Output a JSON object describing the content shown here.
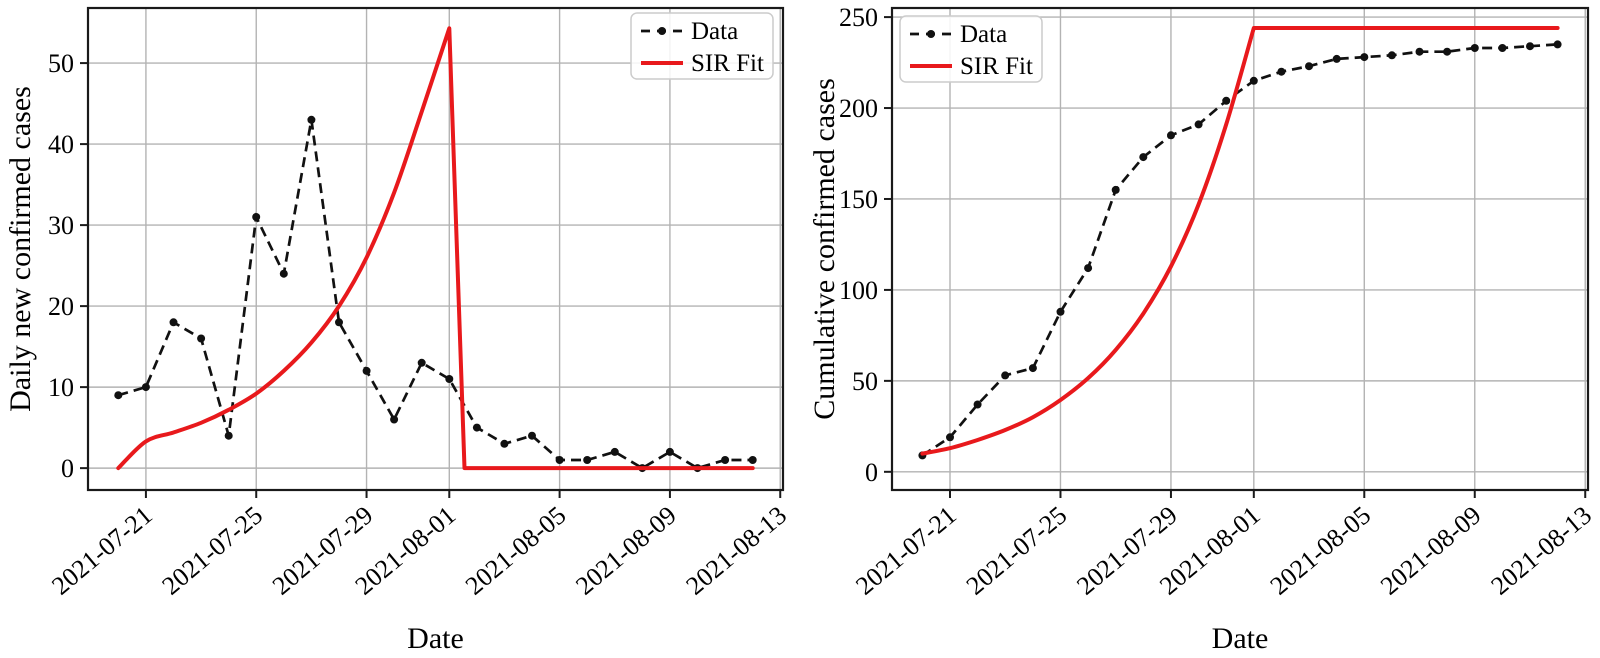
{
  "figure": {
    "background": "#ffffff",
    "grid_color": "#b3b3b3",
    "frame_color": "#1a1a1a",
    "data_color": "#111111",
    "sir_color": "#e8191c"
  },
  "chart_data": [
    {
      "type": "line",
      "title": "",
      "xlabel": "Date",
      "ylabel": "Daily new confirmed cases",
      "grid": true,
      "legend_position": "top-right",
      "legend_entries": [
        "Data",
        "SIR Fit"
      ],
      "xlim_days": [
        -1.1,
        24.1
      ],
      "ylim": [
        -2.7,
        56.8
      ],
      "yticks": [
        0,
        10,
        20,
        30,
        40,
        50
      ],
      "xtick_days": [
        1,
        5,
        9,
        12,
        16,
        20,
        24
      ],
      "xtick_labels": [
        "2021-07-21",
        "2021-07-25",
        "2021-07-29",
        "2021-08-01",
        "2021-08-05",
        "2021-08-09",
        "2021-08-13"
      ],
      "dates": [
        "2021-07-20",
        "2021-07-21",
        "2021-07-22",
        "2021-07-23",
        "2021-07-24",
        "2021-07-25",
        "2021-07-26",
        "2021-07-27",
        "2021-07-28",
        "2021-07-29",
        "2021-07-30",
        "2021-07-31",
        "2021-08-01",
        "2021-08-02",
        "2021-08-03",
        "2021-08-04",
        "2021-08-05",
        "2021-08-06",
        "2021-08-07",
        "2021-08-08",
        "2021-08-09",
        "2021-08-10",
        "2021-08-11",
        "2021-08-12"
      ],
      "series": [
        {
          "name": "Data",
          "style": "dashed",
          "marker": "circle",
          "color": "#111111",
          "x_days": [
            0,
            1,
            2,
            3,
            4,
            5,
            6,
            7,
            8,
            9,
            10,
            11,
            12,
            13,
            14,
            15,
            16,
            17,
            18,
            19,
            20,
            21,
            22,
            23
          ],
          "values": [
            9,
            10,
            18,
            16,
            4,
            31,
            24,
            43,
            18,
            12,
            6,
            13,
            11,
            5,
            3,
            4,
            1,
            1,
            2,
            0,
            2,
            0,
            1,
            1
          ]
        },
        {
          "name": "SIR Fit",
          "style": "solid",
          "color": "#e8191c",
          "width": 4,
          "x_days": [
            0,
            1,
            2,
            3,
            4,
            5,
            6,
            7,
            8,
            9,
            10,
            11,
            12,
            12.55,
            23
          ],
          "values": [
            0,
            3.3,
            4.4,
            5.6,
            7.2,
            9.2,
            12,
            15.5,
            20,
            26,
            34,
            44,
            54.3,
            0,
            0
          ]
        }
      ]
    },
    {
      "type": "line",
      "title": "",
      "xlabel": "Date",
      "ylabel": "Cumulative confirmed cases",
      "grid": true,
      "legend_position": "top-left",
      "legend_entries": [
        "Data",
        "SIR Fit"
      ],
      "xlim_days": [
        -1.1,
        24.1
      ],
      "ylim": [
        -10,
        255
      ],
      "yticks": [
        0,
        50,
        100,
        150,
        200,
        250
      ],
      "xtick_days": [
        1,
        5,
        9,
        12,
        16,
        20,
        24
      ],
      "xtick_labels": [
        "2021-07-21",
        "2021-07-25",
        "2021-07-29",
        "2021-08-01",
        "2021-08-05",
        "2021-08-09",
        "2021-08-13"
      ],
      "dates": [
        "2021-07-20",
        "2021-07-21",
        "2021-07-22",
        "2021-07-23",
        "2021-07-24",
        "2021-07-25",
        "2021-07-26",
        "2021-07-27",
        "2021-07-28",
        "2021-07-29",
        "2021-07-30",
        "2021-07-31",
        "2021-08-01",
        "2021-08-02",
        "2021-08-03",
        "2021-08-04",
        "2021-08-05",
        "2021-08-06",
        "2021-08-07",
        "2021-08-08",
        "2021-08-09",
        "2021-08-10",
        "2021-08-11",
        "2021-08-12"
      ],
      "series": [
        {
          "name": "Data",
          "style": "dashed",
          "marker": "circle",
          "color": "#111111",
          "x_days": [
            0,
            1,
            2,
            3,
            4,
            5,
            6,
            7,
            8,
            9,
            10,
            11,
            12,
            13,
            14,
            15,
            16,
            17,
            18,
            19,
            20,
            21,
            22,
            23
          ],
          "values": [
            9,
            19,
            37,
            53,
            57,
            88,
            112,
            155,
            173,
            185,
            191,
            204,
            215,
            220,
            223,
            227,
            228,
            229,
            231,
            231,
            233,
            233,
            234,
            235
          ]
        },
        {
          "name": "SIR Fit",
          "style": "solid",
          "color": "#e8191c",
          "width": 4,
          "x_days": [
            0,
            1,
            2,
            3,
            4,
            5,
            6,
            7,
            8,
            9,
            10,
            11,
            12,
            23
          ],
          "values": [
            10,
            13,
            17.5,
            23,
            30,
            39.5,
            51.5,
            67,
            87,
            113,
            147,
            191,
            244,
            244
          ]
        }
      ]
    }
  ]
}
